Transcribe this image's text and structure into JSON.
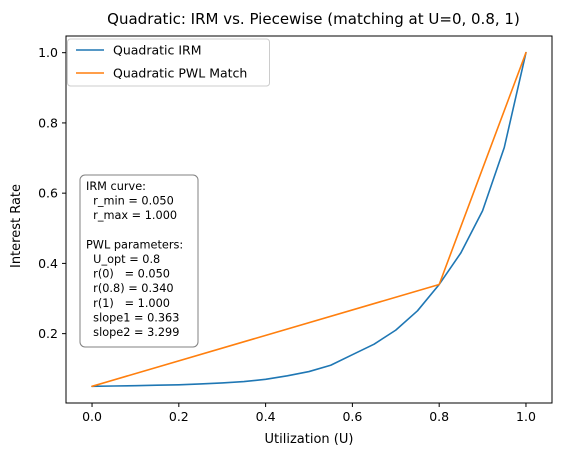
{
  "chart_data": {
    "type": "line",
    "title": "Quadratic: IRM vs. Piecewise (matching at U=0, 0.8, 1)",
    "xlabel": "Utilization (U)",
    "ylabel": "Interest Rate",
    "xlim": [
      -0.06,
      1.06
    ],
    "ylim": [
      0.0025,
      1.0475
    ],
    "xticks": [
      0.0,
      0.2,
      0.4,
      0.6,
      0.8,
      1.0
    ],
    "yticks": [
      0.2,
      0.4,
      0.6,
      0.8,
      1.0
    ],
    "xtick_labels": [
      "0.0",
      "0.2",
      "0.4",
      "0.6",
      "0.8",
      "1.0"
    ],
    "ytick_labels": [
      "0.2",
      "0.4",
      "0.6",
      "0.8",
      "1.0"
    ],
    "grid": false,
    "legend_position": "top-left",
    "series": [
      {
        "name": "Quadratic IRM",
        "color": "#1f77b4",
        "x": [
          0.0,
          0.05,
          0.1,
          0.15,
          0.2,
          0.25,
          0.3,
          0.35,
          0.4,
          0.45,
          0.5,
          0.55,
          0.6,
          0.65,
          0.7,
          0.75,
          0.8,
          0.85,
          0.9,
          0.95,
          1.0
        ],
        "y": [
          0.05,
          0.0509,
          0.0519,
          0.0531,
          0.0544,
          0.0568,
          0.0595,
          0.0635,
          0.07,
          0.08,
          0.092,
          0.11,
          0.14,
          0.17,
          0.21,
          0.265,
          0.34,
          0.43,
          0.55,
          0.73,
          1.0
        ]
      },
      {
        "name": "Quadratic PWL Match",
        "color": "#ff7f0e",
        "x": [
          0.0,
          0.8,
          1.0
        ],
        "y": [
          0.05,
          0.34,
          1.0
        ]
      }
    ],
    "annotation": [
      "IRM curve:",
      "  r_min = 0.050",
      "  r_max = 1.000",
      "",
      "PWL parameters:",
      "  U_opt = 0.8",
      "  r(0)   = 0.050",
      "  r(0.8) = 0.340",
      "  r(1)   = 1.000",
      "  slope1 = 0.363",
      "  slope2 = 3.299"
    ]
  }
}
